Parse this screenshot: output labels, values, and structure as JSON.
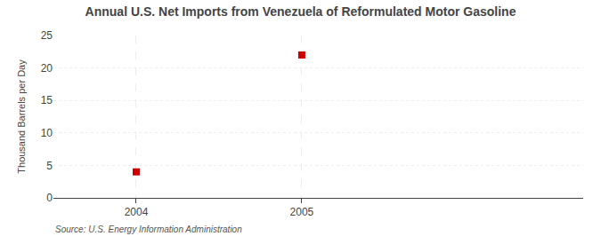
{
  "chart_data": {
    "type": "scatter",
    "title": "Annual U.S. Net Imports from Venezuela of Reformulated Motor Gasoline",
    "y_label": "Thousand Barrels per Day",
    "annotations": [
      "Source: U.S. Energy Information Administration"
    ],
    "x": [
      2004,
      2005
    ],
    "values": [
      4,
      22
    ],
    "color": "#cc0000",
    "marker": "square",
    "xlim": [
      2003.5,
      2006.7
    ],
    "xticks": [
      2004,
      2005
    ],
    "ylim": [
      0,
      25
    ],
    "yticks": [
      0,
      5,
      10,
      15,
      20,
      25
    ],
    "grid": true
  }
}
